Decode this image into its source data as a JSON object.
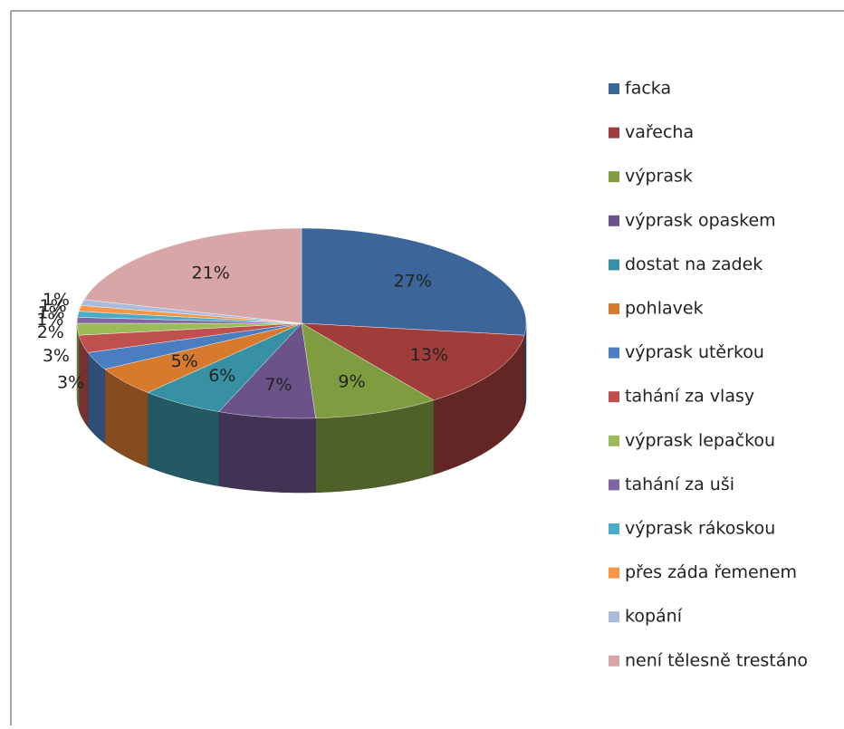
{
  "chart_data": {
    "type": "pie",
    "categories": [
      "facka",
      "vařecha",
      "výprask",
      "výprask opaskem",
      "dostat na zadek",
      "pohlavek",
      "výprask utěrkou",
      "tahání za vlasy",
      "výprask lepačkou",
      "tahání za uši",
      "výprask rákoskou",
      "přes záda řemenem",
      "kopání",
      "není tělesně trestáno"
    ],
    "values": [
      27,
      13,
      9,
      7,
      6,
      5,
      3,
      3,
      2,
      1,
      1,
      1,
      1,
      21
    ],
    "value_labels": [
      "27%",
      "13%",
      "9%",
      "7%",
      "6%",
      "5%",
      "3%",
      "3%",
      "2%",
      "1%",
      "1%",
      "1%",
      "1%",
      "21%"
    ],
    "colors": [
      "#3c6599",
      "#a03d3a",
      "#7f9d40",
      "#6b5289",
      "#3790a3",
      "#d87a2e",
      "#4a7ec0",
      "#c0504d",
      "#9bbb59",
      "#8064a2",
      "#4bacc6",
      "#f79646",
      "#a9bcdc",
      "#d9a6a7"
    ],
    "legend": "right"
  }
}
